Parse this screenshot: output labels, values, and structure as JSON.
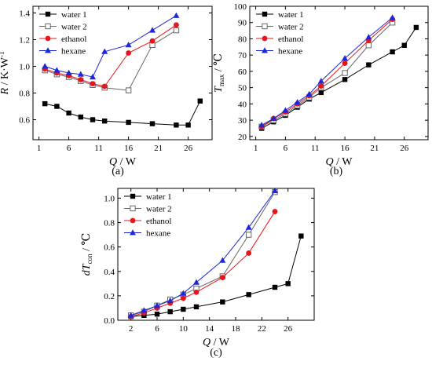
{
  "chart_data": [
    {
      "type": "line",
      "panel_label": "(a)",
      "xlabel": {
        "var": "Q",
        "unit": "W"
      },
      "ylabel": {
        "var": "R",
        "unit": "K·W",
        "sup": "-1"
      },
      "xlim": [
        0,
        30
      ],
      "ylim": [
        0.45,
        1.45
      ],
      "xticks": [
        1,
        6,
        11,
        16,
        21,
        26
      ],
      "yticks": [
        0.6,
        0.8,
        1.0,
        1.2,
        1.4
      ],
      "legend_position": "top-left",
      "series": [
        {
          "name": "water 1",
          "color": "#000000",
          "marker": "square-filled",
          "x": [
            2,
            4,
            6,
            8,
            10,
            12,
            16,
            20,
            24,
            26,
            28
          ],
          "values": [
            0.72,
            0.7,
            0.65,
            0.62,
            0.6,
            0.59,
            0.58,
            0.57,
            0.56,
            0.56,
            0.74
          ]
        },
        {
          "name": "water 2",
          "color": "#666666",
          "marker": "square-open",
          "x": [
            2,
            4,
            6,
            8,
            10,
            12,
            16,
            20,
            24
          ],
          "values": [
            0.97,
            0.94,
            0.92,
            0.89,
            0.86,
            0.84,
            0.82,
            1.16,
            1.27
          ]
        },
        {
          "name": "ethanol",
          "color": "#e8141b",
          "marker": "circle-filled",
          "x": [
            2,
            4,
            6,
            8,
            10,
            12,
            16,
            20,
            24
          ],
          "values": [
            0.98,
            0.95,
            0.93,
            0.9,
            0.87,
            0.85,
            1.1,
            1.19,
            1.31
          ]
        },
        {
          "name": "hexane",
          "color": "#1e27d8",
          "marker": "triangle-filled",
          "x": [
            2,
            4,
            6,
            8,
            10,
            12,
            16,
            20,
            24
          ],
          "values": [
            1.0,
            0.97,
            0.95,
            0.94,
            0.92,
            1.11,
            1.16,
            1.27,
            1.38
          ]
        }
      ]
    },
    {
      "type": "line",
      "panel_label": "(b)",
      "xlabel": {
        "var": "Q",
        "unit": "W"
      },
      "ylabel": {
        "var": "T",
        "sub": "max",
        "unit": "℃"
      },
      "xlim": [
        0,
        30
      ],
      "ylim": [
        18,
        100
      ],
      "xticks": [
        1,
        6,
        11,
        16,
        21,
        26
      ],
      "yticks": [
        20,
        30,
        40,
        50,
        60,
        70,
        80,
        90,
        100
      ],
      "legend_position": "top-left",
      "series": [
        {
          "name": "water 1",
          "color": "#000000",
          "marker": "square-filled",
          "x": [
            2,
            4,
            6,
            8,
            10,
            12,
            16,
            20,
            24,
            26,
            28
          ],
          "values": [
            25,
            29,
            33,
            38,
            43,
            47,
            55,
            64,
            72,
            76,
            87
          ]
        },
        {
          "name": "water 2",
          "color": "#666666",
          "marker": "square-open",
          "x": [
            2,
            4,
            6,
            8,
            10,
            12,
            16,
            20,
            24
          ],
          "values": [
            26,
            30,
            34,
            39,
            44,
            50,
            59,
            76,
            90
          ]
        },
        {
          "name": "ethanol",
          "color": "#e8141b",
          "marker": "circle-filled",
          "x": [
            2,
            4,
            6,
            8,
            10,
            12,
            16,
            20,
            24
          ],
          "values": [
            26,
            31,
            35,
            40,
            45,
            51,
            65,
            79,
            92
          ]
        },
        {
          "name": "hexane",
          "color": "#1e27d8",
          "marker": "triangle-filled",
          "x": [
            2,
            4,
            6,
            8,
            10,
            12,
            16,
            20,
            24
          ],
          "values": [
            27,
            31,
            36,
            41,
            46,
            54,
            68,
            81,
            93
          ]
        }
      ]
    },
    {
      "type": "line",
      "panel_label": "(c)",
      "xlabel": {
        "var": "Q",
        "unit": "W"
      },
      "ylabel": {
        "var": "dT",
        "sub": "con",
        "unit": "℃"
      },
      "xlim": [
        0,
        30
      ],
      "ylim": [
        0,
        1.08
      ],
      "xticks": [
        2,
        6,
        10,
        14,
        18,
        22,
        26
      ],
      "yticks": [
        0.0,
        0.2,
        0.4,
        0.6,
        0.8,
        1.0
      ],
      "legend_position": "top-left",
      "series": [
        {
          "name": "water 1",
          "color": "#000000",
          "marker": "square-filled",
          "x": [
            2,
            4,
            6,
            8,
            10,
            12,
            16,
            20,
            24,
            26,
            28
          ],
          "values": [
            0.03,
            0.04,
            0.05,
            0.07,
            0.09,
            0.11,
            0.15,
            0.21,
            0.27,
            0.3,
            0.69
          ]
        },
        {
          "name": "water 2",
          "color": "#666666",
          "marker": "square-open",
          "x": [
            2,
            4,
            6,
            8,
            10,
            12,
            16,
            20,
            24
          ],
          "values": [
            0.04,
            0.07,
            0.12,
            0.17,
            0.21,
            0.26,
            0.36,
            0.7,
            1.05
          ]
        },
        {
          "name": "ethanol",
          "color": "#e8141b",
          "marker": "circle-filled",
          "x": [
            2,
            4,
            6,
            8,
            10,
            12,
            16,
            20,
            24
          ],
          "values": [
            0.03,
            0.06,
            0.1,
            0.14,
            0.18,
            0.23,
            0.35,
            0.55,
            0.89
          ]
        },
        {
          "name": "hexane",
          "color": "#1e27d8",
          "marker": "triangle-filled",
          "x": [
            2,
            4,
            6,
            8,
            10,
            12,
            16,
            20,
            24
          ],
          "values": [
            0.04,
            0.08,
            0.12,
            0.16,
            0.22,
            0.31,
            0.49,
            0.76,
            1.06
          ]
        }
      ]
    }
  ]
}
